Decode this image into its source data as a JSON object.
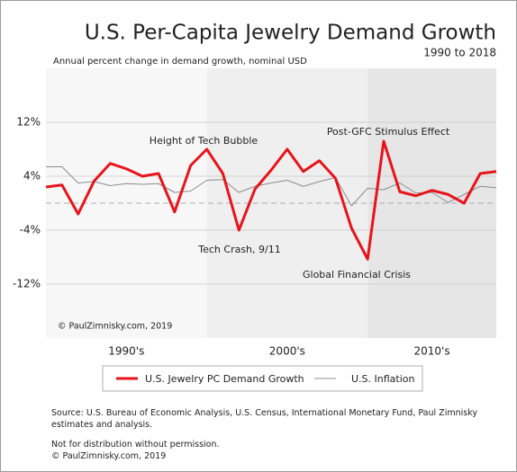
{
  "chart_data": {
    "type": "line",
    "title": "U.S. Per-Capita Jewelry Demand Growth",
    "subtitle": "1990 to 2018",
    "y_axis_label": "Annual percent change in demand growth, nominal USD",
    "x": [
      1990,
      1991,
      1992,
      1993,
      1994,
      1995,
      1996,
      1997,
      1998,
      1999,
      2000,
      2001,
      2002,
      2003,
      2004,
      2005,
      2006,
      2007,
      2008,
      2009,
      2010,
      2011,
      2012,
      2013,
      2014,
      2015,
      2016,
      2017,
      2018
    ],
    "xlim": [
      1990,
      2018
    ],
    "ylim": [
      -20,
      20
    ],
    "yticks": [
      {
        "value": 12,
        "label": "12%"
      },
      {
        "value": 4,
        "label": "4%"
      },
      {
        "value": -4,
        "label": "-4%"
      },
      {
        "value": -12,
        "label": "-12%"
      }
    ],
    "grid": true,
    "reference_line": 0,
    "decades": [
      {
        "label": "1990's",
        "start": 1990,
        "end": 2000,
        "color": "#f7f7f7"
      },
      {
        "label": "2000's",
        "start": 2000,
        "end": 2010,
        "color": "#efefef"
      },
      {
        "label": "2010's",
        "start": 2010,
        "end": 2018,
        "color": "#e6e6e6"
      }
    ],
    "series": [
      {
        "name": "U.S. Jewelry PC Demand Growth",
        "color": "#e8141b",
        "values": [
          2.4,
          2.7,
          -1.6,
          3.3,
          5.9,
          5.1,
          4.0,
          4.4,
          -1.3,
          5.6,
          8.0,
          4.4,
          -4.0,
          2.1,
          4.9,
          8.0,
          4.7,
          6.3,
          3.7,
          -3.7,
          -8.3,
          9.2,
          1.7,
          1.1,
          1.9,
          1.3,
          0,
          4.4,
          4.7
        ]
      },
      {
        "name": "U.S. Inflation",
        "color": "#8c8c8c",
        "values": [
          5.4,
          5.4,
          3.0,
          3.2,
          2.6,
          2.9,
          2.8,
          2.9,
          1.6,
          1.8,
          3.4,
          3.5,
          1.6,
          2.5,
          3.0,
          3.4,
          2.5,
          3.2,
          3.8,
          -0.4,
          2.2,
          2.0,
          3.0,
          1.5,
          1.6,
          0.1,
          1.3,
          2.5,
          2.3
        ]
      }
    ],
    "annotations": [
      "Height of Tech Bubble",
      "Tech Crash, 9/11",
      "Post-GFC Stimulus Effect",
      "Global Financial Crisis",
      "© PaulZimnisky.com, 2019"
    ]
  },
  "notes": {
    "source": "Source: U.S. Bureau of Economic Analysis, U.S. Census, International Monetary Fund, Paul Zimnisky estimates and analysis.",
    "disclaimer": "Not for distribution without permission.",
    "copyright": "© PaulZimnisky.com, 2019"
  }
}
